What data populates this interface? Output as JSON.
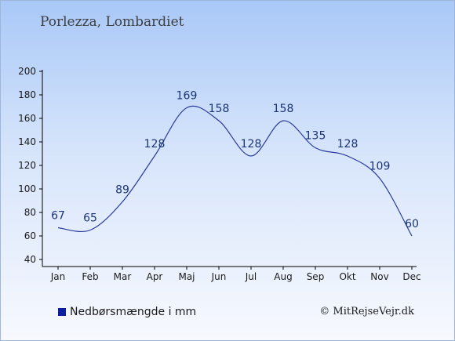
{
  "title": "Porlezza, Lombardiet",
  "legend": {
    "label": "Nedbørsmængde i mm",
    "color": "#0c1f9c"
  },
  "credit": "© MitRejseVejr.dk",
  "chart_data": {
    "type": "line",
    "categories": [
      "Jan",
      "Feb",
      "Mar",
      "Apr",
      "Maj",
      "Jun",
      "Jul",
      "Aug",
      "Sep",
      "Okt",
      "Nov",
      "Dec"
    ],
    "series": [
      {
        "name": "Nedbørsmængde i mm",
        "values": [
          67,
          65,
          89,
          128,
          169,
          158,
          128,
          158,
          135,
          128,
          109,
          60
        ]
      }
    ],
    "data_labels": [
      "67",
      "65",
      "89",
      "128",
      "169",
      "158",
      "128",
      "158",
      "135",
      "128",
      "109",
      "60"
    ],
    "yticks": [
      40,
      60,
      80,
      100,
      120,
      140,
      160,
      180,
      200
    ],
    "ylim": [
      40,
      200
    ],
    "line_color": "#2a3a9c",
    "grid": false,
    "legend_position": "bottom-left"
  }
}
